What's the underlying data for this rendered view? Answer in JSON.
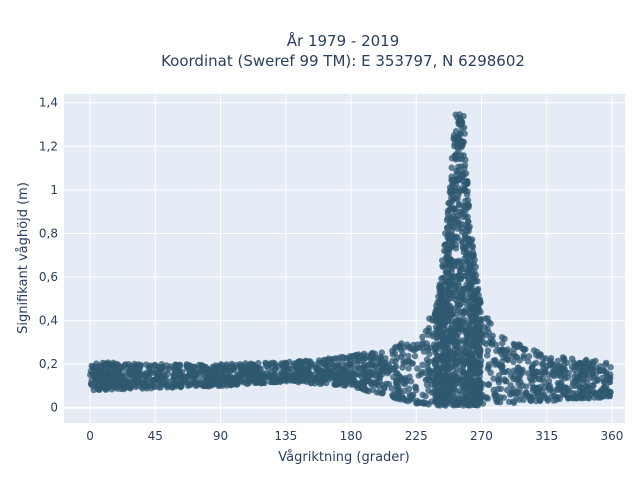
{
  "chart_data": {
    "type": "scatter",
    "title_line1": "År 1979 - 2019",
    "title_line2": "Koordinat (Sweref 99 TM): E 353797, N 6298602",
    "xlabel": "Vågriktning (grader)",
    "ylabel": "Signifikant våghöjd (m)",
    "xlim": [
      -18,
      369
    ],
    "ylim": [
      -0.07,
      1.44
    ],
    "xticks": [
      0,
      45,
      90,
      135,
      180,
      225,
      270,
      315,
      360
    ],
    "xtick_labels": [
      "0",
      "45",
      "90",
      "135",
      "180",
      "225",
      "270",
      "315",
      "360"
    ],
    "yticks": [
      0,
      0.2,
      0.4,
      0.6,
      0.8,
      1.0,
      1.2,
      1.4
    ],
    "ytick_labels": [
      "0",
      "0,2",
      "0,4",
      "0,6",
      "0,8",
      "1",
      "1,2",
      "1,4"
    ],
    "grid": true,
    "marker_color": "#2e5870",
    "background_color": "#e5ecf6",
    "band": [
      {
        "x": 0,
        "lo": 0.08,
        "hi": 0.21
      },
      {
        "x": 45,
        "lo": 0.09,
        "hi": 0.2
      },
      {
        "x": 90,
        "lo": 0.1,
        "hi": 0.2
      },
      {
        "x": 135,
        "lo": 0.12,
        "hi": 0.21
      },
      {
        "x": 180,
        "lo": 0.1,
        "hi": 0.24
      },
      {
        "x": 200,
        "lo": 0.06,
        "hi": 0.26
      },
      {
        "x": 225,
        "lo": 0.02,
        "hi": 0.32
      },
      {
        "x": 240,
        "lo": 0.01,
        "hi": 0.5
      },
      {
        "x": 248,
        "lo": 0.01,
        "hi": 1.0
      },
      {
        "x": 252,
        "lo": 0.01,
        "hi": 1.35
      },
      {
        "x": 258,
        "lo": 0.01,
        "hi": 1.35
      },
      {
        "x": 262,
        "lo": 0.01,
        "hi": 0.85
      },
      {
        "x": 270,
        "lo": 0.01,
        "hi": 0.45
      },
      {
        "x": 285,
        "lo": 0.02,
        "hi": 0.32
      },
      {
        "x": 315,
        "lo": 0.03,
        "hi": 0.24
      },
      {
        "x": 360,
        "lo": 0.05,
        "hi": 0.21
      }
    ]
  }
}
